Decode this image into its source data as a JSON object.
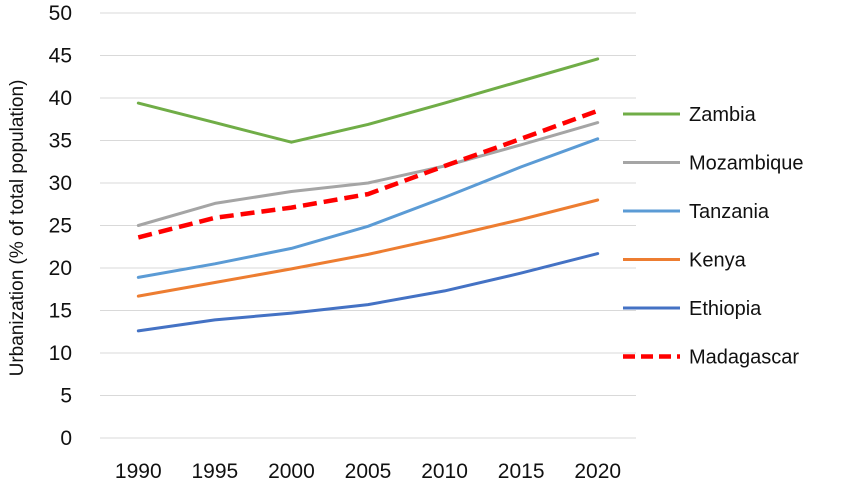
{
  "chart_data": {
    "type": "line",
    "title": "",
    "xlabel": "",
    "ylabel": "Urbanization (% of total population)",
    "ylim": [
      0,
      50
    ],
    "yticks": [
      0,
      5,
      10,
      15,
      20,
      25,
      30,
      35,
      40,
      45,
      50
    ],
    "x": [
      "1990",
      "1995",
      "2000",
      "2005",
      "2010",
      "2015",
      "2020"
    ],
    "grid": true,
    "legend_position": "right",
    "series": [
      {
        "name": "Zambia",
        "color": "#70ad47",
        "dashed": false,
        "values": [
          39.4,
          37.1,
          34.8,
          36.9,
          39.4,
          42.0,
          44.6
        ]
      },
      {
        "name": "Mozambique",
        "color": "#a5a5a5",
        "dashed": false,
        "values": [
          25.0,
          27.6,
          29.0,
          30.0,
          32.0,
          34.5,
          37.1
        ]
      },
      {
        "name": "Tanzania",
        "color": "#5b9bd5",
        "dashed": false,
        "values": [
          18.9,
          20.5,
          22.3,
          24.9,
          28.3,
          31.9,
          35.2
        ]
      },
      {
        "name": "Kenya",
        "color": "#ed7d31",
        "dashed": false,
        "values": [
          16.7,
          18.3,
          19.9,
          21.6,
          23.6,
          25.7,
          28.0
        ]
      },
      {
        "name": "Ethiopia",
        "color": "#4472c4",
        "dashed": false,
        "values": [
          12.6,
          13.9,
          14.7,
          15.7,
          17.3,
          19.4,
          21.7
        ]
      },
      {
        "name": "Madagascar",
        "color": "#ff0000",
        "dashed": true,
        "values": [
          23.6,
          25.9,
          27.1,
          28.7,
          32.0,
          35.2,
          38.5
        ]
      }
    ]
  }
}
